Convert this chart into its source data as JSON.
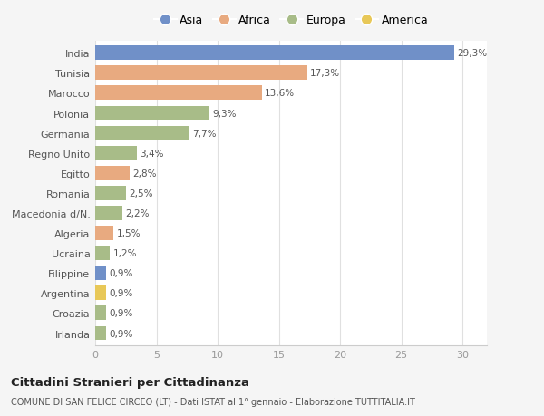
{
  "countries": [
    "India",
    "Tunisia",
    "Marocco",
    "Polonia",
    "Germania",
    "Regno Unito",
    "Egitto",
    "Romania",
    "Macedonia d/N.",
    "Algeria",
    "Ucraina",
    "Filippine",
    "Argentina",
    "Croazia",
    "Irlanda"
  ],
  "values": [
    29.3,
    17.3,
    13.6,
    9.3,
    7.7,
    3.4,
    2.8,
    2.5,
    2.2,
    1.5,
    1.2,
    0.9,
    0.9,
    0.9,
    0.9
  ],
  "labels": [
    "29,3%",
    "17,3%",
    "13,6%",
    "9,3%",
    "7,7%",
    "3,4%",
    "2,8%",
    "2,5%",
    "2,2%",
    "1,5%",
    "1,2%",
    "0,9%",
    "0,9%",
    "0,9%",
    "0,9%"
  ],
  "categories": [
    "Asia",
    "Africa",
    "Africa",
    "Europa",
    "Europa",
    "Europa",
    "Africa",
    "Europa",
    "Europa",
    "Africa",
    "Europa",
    "Asia",
    "America",
    "Europa",
    "Europa"
  ],
  "colors": {
    "Asia": "#7090c8",
    "Africa": "#e8aa80",
    "Europa": "#a8bc88",
    "America": "#e8c858"
  },
  "legend_labels": [
    "Asia",
    "Africa",
    "Europa",
    "America"
  ],
  "title": "Cittadini Stranieri per Cittadinanza",
  "subtitle": "COMUNE DI SAN FELICE CIRCEO (LT) - Dati ISTAT al 1° gennaio - Elaborazione TUTTITALIA.IT",
  "xlim": [
    0,
    32
  ],
  "xticks": [
    0,
    5,
    10,
    15,
    20,
    25,
    30
  ],
  "bg_color": "#f5f5f5",
  "plot_bg_color": "#ffffff"
}
